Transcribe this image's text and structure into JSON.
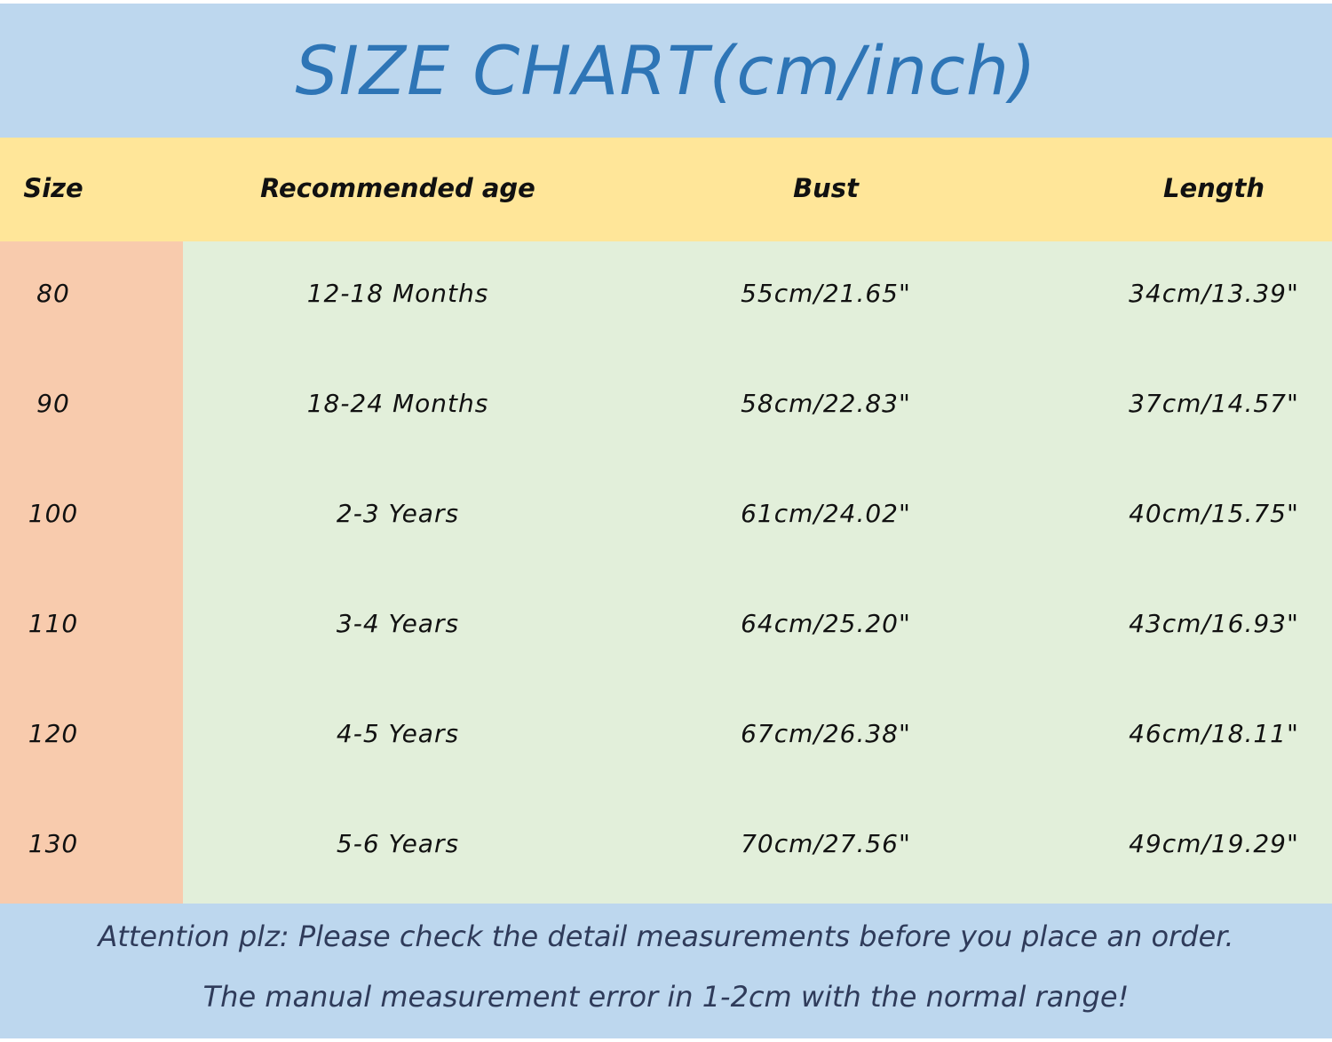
{
  "title": "SIZE CHART(cm/inch)",
  "colors": {
    "title_band": "#bdd7ee",
    "header_band": "#ffe699",
    "size_column": "#f8cbad",
    "body": "#e2efda",
    "title_text": "#2e75b6"
  },
  "table": {
    "headers": [
      "Size",
      "Recommended age",
      "Bust",
      "Length"
    ],
    "rows": [
      [
        "80",
        "12-18 Months",
        "55cm/21.65\"",
        "34cm/13.39\""
      ],
      [
        "90",
        "18-24 Months",
        "58cm/22.83\"",
        "37cm/14.57\""
      ],
      [
        "100",
        "2-3 Years",
        "61cm/24.02\"",
        "40cm/15.75\""
      ],
      [
        "110",
        "3-4 Years",
        "64cm/25.20\"",
        "43cm/16.93\""
      ],
      [
        "120",
        "4-5 Years",
        "67cm/26.38\"",
        "46cm/18.11\""
      ],
      [
        "130",
        "5-6 Years",
        "70cm/27.56\"",
        "49cm/19.29\""
      ]
    ]
  },
  "footer": {
    "line1": "Attention plz:  Please check the detail measurements before you place an order.",
    "line2": "The manual measurement error in 1-2cm with the normal range!"
  }
}
